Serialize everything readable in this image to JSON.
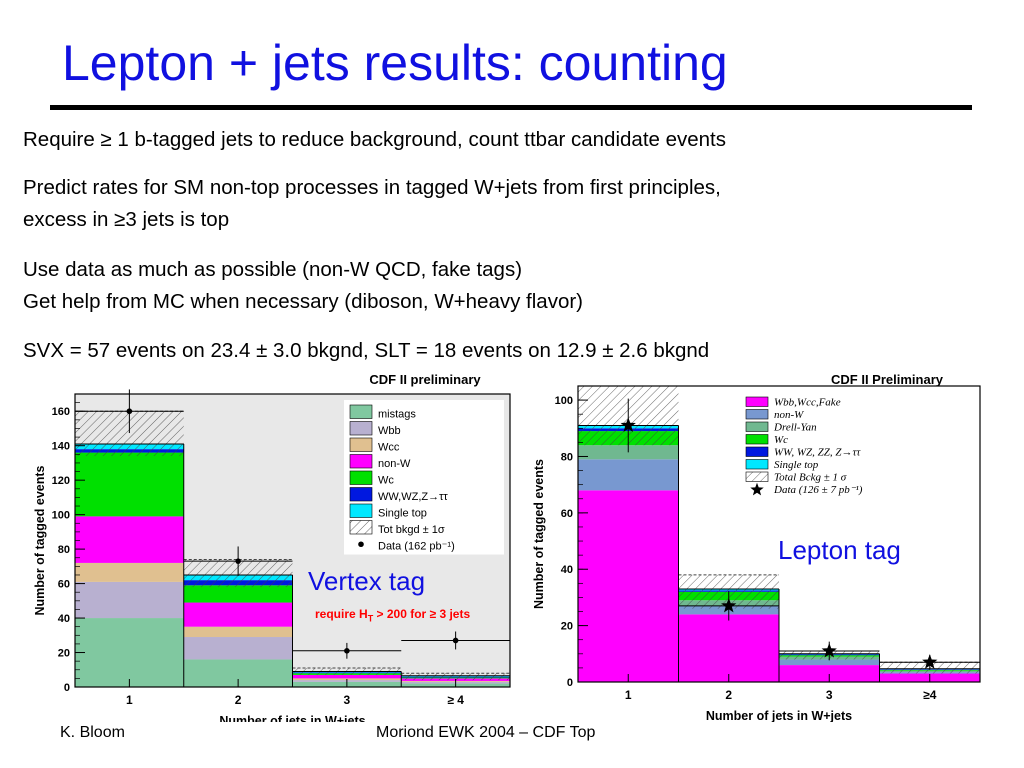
{
  "slide": {
    "title": "Lepton + jets results: counting",
    "bullets": [
      "Require ≥ 1 b-tagged jets to reduce background, count ttbar candidate events",
      "Predict rates for SM non-top processes in tagged W+jets from first principles,",
      "excess in ≥3 jets is top",
      "Use data as much as possible (non-W QCD, fake tags)",
      "Get help from MC when necessary (diboson, W+heavy flavor)",
      "SVX = 57 events on 23.4 ± 3.0 bkgnd, SLT = 18 events on 12.9 ± 2.6 bkgnd"
    ],
    "footer_left": "K. Bloom",
    "footer_center": "Moriond EWK 2004 – CDF Top",
    "title_color": "#1010e0"
  },
  "overlays": {
    "vertex_tag": "Vertex tag",
    "lepton_tag": "Lepton tag",
    "requirement": "require H",
    "requirement_sub": "T",
    "requirement_rest": " > 200 for ≥ 3 jets"
  },
  "chart_data": [
    {
      "type": "bar",
      "title": "CDF II preliminary",
      "xlabel": "Number of jets in W+jets",
      "ylabel": "Number of tagged events",
      "categories": [
        "1",
        "2",
        "3",
        "≥ 4"
      ],
      "ylim": [
        0,
        170
      ],
      "yticks": [
        0,
        20,
        40,
        60,
        80,
        100,
        120,
        140,
        160
      ],
      "stacked": true,
      "series": [
        {
          "name": "mistags",
          "color": "#80c8a0",
          "values": [
            40,
            16,
            3,
            2
          ]
        },
        {
          "name": "Wbb",
          "color": "#b8b0d0",
          "values": [
            21,
            13,
            1,
            1
          ]
        },
        {
          "name": "Wcc",
          "color": "#e0c090",
          "values": [
            11,
            6,
            1,
            0.5
          ]
        },
        {
          "name": "non-W",
          "color": "#ff00ff",
          "values": [
            27,
            14,
            2,
            1.5
          ]
        },
        {
          "name": "Wc",
          "color": "#00e000",
          "values": [
            37,
            10,
            1,
            0.5
          ]
        },
        {
          "name": "WW,WZ,Z→ττ",
          "color": "#0018e0",
          "values": [
            2,
            3,
            0.5,
            0.5
          ]
        },
        {
          "name": "Single top",
          "color": "#00e8ff",
          "values": [
            3,
            3,
            0.5,
            0.5
          ]
        }
      ],
      "band": {
        "name": "Tot bkgd ± 1σ",
        "low": [
          134,
          58,
          7,
          4
        ],
        "high": [
          160,
          74,
          11,
          8
        ]
      },
      "data": {
        "name": "Data (162 pb⁻¹)",
        "values": [
          160,
          73,
          21,
          27
        ]
      },
      "legend": "top-right"
    },
    {
      "type": "bar",
      "title": "CDF II Preliminary",
      "xlabel": "Number of jets in W+jets",
      "ylabel": "Number of tagged events",
      "categories": [
        "1",
        "2",
        "3",
        "≥4"
      ],
      "ylim": [
        0,
        105
      ],
      "yticks": [
        0,
        20,
        40,
        60,
        80,
        100
      ],
      "stacked": true,
      "series": [
        {
          "name": "Wbb,Wcc,Fake",
          "color": "#ff00ff",
          "values": [
            68,
            24,
            6,
            3
          ]
        },
        {
          "name": "non-W",
          "color": "#7898d0",
          "values": [
            11,
            3,
            2,
            0.5
          ]
        },
        {
          "name": "Drell-Yan",
          "color": "#70b890",
          "values": [
            5,
            2,
            1,
            0.5
          ]
        },
        {
          "name": "Wc",
          "color": "#00e000",
          "values": [
            5,
            3,
            0.5,
            0.3
          ]
        },
        {
          "name": "WW, WZ, ZZ, Z→ττ",
          "color": "#0018e0",
          "values": [
            1,
            0.5,
            0.3,
            0.2
          ]
        },
        {
          "name": "Single top",
          "color": "#00e8ff",
          "values": [
            1,
            0.5,
            0.2,
            0.2
          ]
        }
      ],
      "band": {
        "name": "Total Bckg ± 1 σ",
        "low": [
          84,
          26,
          8,
          3
        ],
        "high": [
          105,
          38,
          11,
          7
        ]
      },
      "data": {
        "name": "Data (126 ± 7 pb⁻¹)",
        "values": [
          91,
          27,
          11,
          7
        ]
      },
      "legend": "top-right"
    }
  ]
}
